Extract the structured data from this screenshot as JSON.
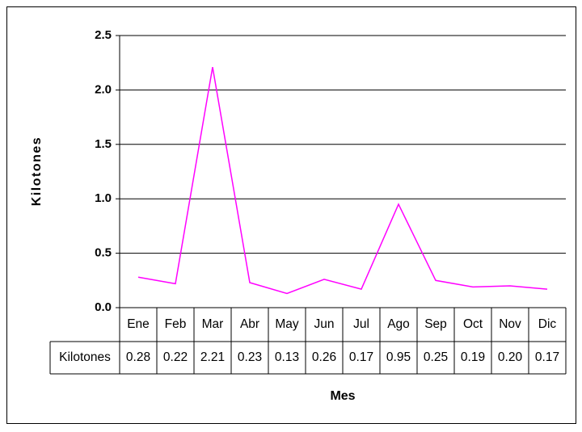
{
  "chart_data": {
    "type": "line",
    "y_label": "Kilotones",
    "x_label": "Mes",
    "categories": [
      "Ene",
      "Feb",
      "Mar",
      "Abr",
      "May",
      "Jun",
      "Jul",
      "Ago",
      "Sep",
      "Oct",
      "Nov",
      "Dic"
    ],
    "series": [
      {
        "name": "Kilotones",
        "color": "#ff00ff",
        "values": [
          0.28,
          0.22,
          2.21,
          0.23,
          0.13,
          0.26,
          0.17,
          0.95,
          0.25,
          0.19,
          0.2,
          0.17
        ],
        "value_labels": [
          "0.28",
          "0.22",
          "2.21",
          "0.23",
          "0.13",
          "0.26",
          "0.17",
          "0.95",
          "0.25",
          "0.19",
          "0.20",
          "0.17"
        ]
      }
    ],
    "ylim": [
      0,
      2.5
    ],
    "yticks": [
      {
        "value": 0,
        "label": "0.0"
      },
      {
        "value": 0.5,
        "label": "0.5"
      },
      {
        "value": 1,
        "label": "1.0"
      },
      {
        "value": 1.5,
        "label": "1.5"
      },
      {
        "value": 2,
        "label": "2.0"
      },
      {
        "value": 2.5,
        "label": "2.5"
      }
    ],
    "grid": true
  }
}
